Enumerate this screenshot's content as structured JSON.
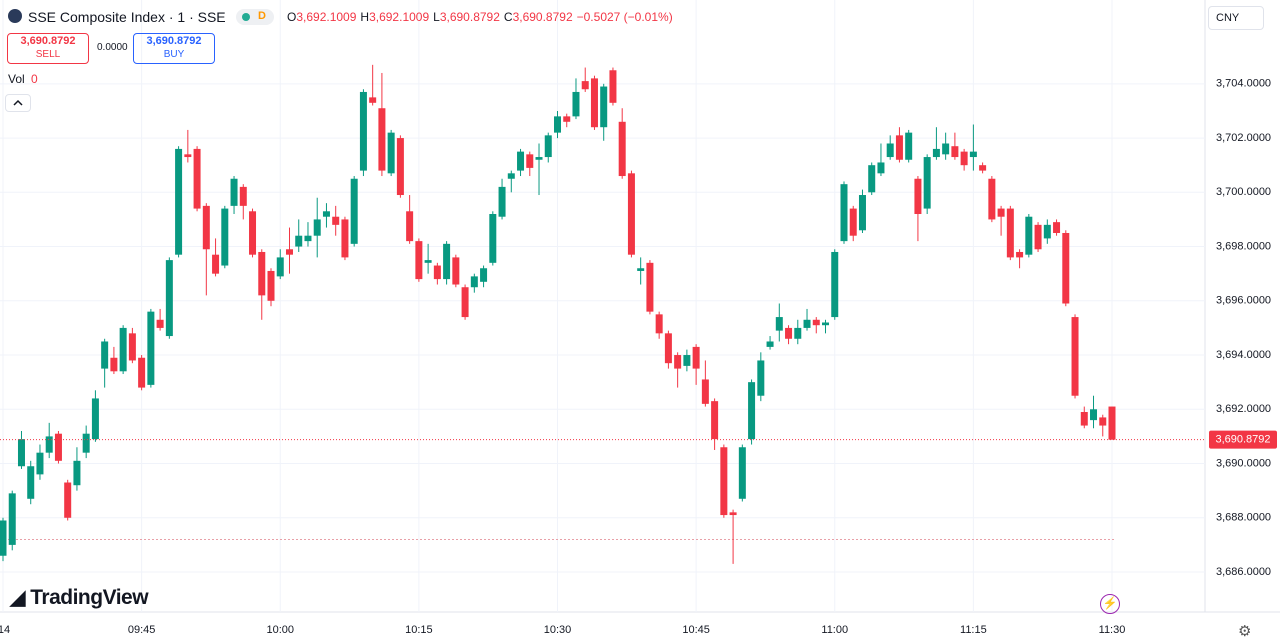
{
  "header": {
    "title": "SSE Composite Index · 1 · SSE",
    "badge": "D",
    "ohlc": [
      {
        "key": "O",
        "value": "3,692.1009"
      },
      {
        "key": "H",
        "value": "3,692.1009"
      },
      {
        "key": "L",
        "value": "3,690.8792"
      },
      {
        "key": "C",
        "value": "3,690.8792"
      }
    ],
    "change": "−0.5027 (−0.01%)",
    "sell": {
      "price": "3,690.8792",
      "label": "SELL"
    },
    "spread": "0.0000",
    "buy": {
      "price": "3,690.8792",
      "label": "BUY"
    },
    "vol": {
      "label": "Vol",
      "value": "0"
    },
    "currency": "CNY",
    "brand": "TradingView"
  },
  "chart_data": {
    "type": "candlestick",
    "up_color": "#089981",
    "down_color": "#f23645",
    "grid": true,
    "categories": [
      "14",
      null,
      null,
      null,
      null,
      null,
      null,
      null,
      null,
      null,
      null,
      null,
      null,
      null,
      null,
      "09:45",
      null,
      null,
      null,
      null,
      null,
      null,
      null,
      null,
      null,
      null,
      null,
      null,
      null,
      null,
      "10:00",
      null,
      null,
      null,
      null,
      null,
      null,
      null,
      null,
      null,
      null,
      null,
      null,
      null,
      null,
      "10:15",
      null,
      null,
      null,
      null,
      null,
      null,
      null,
      null,
      null,
      null,
      null,
      null,
      null,
      null,
      "10:30",
      null,
      null,
      null,
      null,
      null,
      null,
      null,
      null,
      null,
      null,
      null,
      null,
      null,
      null,
      "10:45",
      null,
      null,
      null,
      null,
      null,
      null,
      null,
      null,
      null,
      null,
      null,
      null,
      null,
      null,
      "11:00",
      null,
      null,
      null,
      null,
      null,
      null,
      null,
      null,
      null,
      null,
      null,
      null,
      null,
      null,
      "11:15",
      null,
      null,
      null,
      null,
      null,
      null,
      null,
      null,
      null,
      null,
      null,
      null,
      null,
      null,
      "11:30"
    ],
    "open": [
      3686.6,
      3687.0,
      3689.9,
      3688.7,
      3689.6,
      3690.4,
      3691.1,
      3689.3,
      3689.2,
      3690.4,
      3690.9,
      3693.5,
      3693.9,
      3693.4,
      3694.8,
      3693.9,
      3692.9,
      3695.3,
      3694.7,
      3697.7,
      3701.4,
      3701.6,
      3699.5,
      3697.7,
      3697.3,
      3699.5,
      3700.2,
      3699.3,
      3697.8,
      3697.1,
      3696.9,
      3697.9,
      3698.0,
      3698.2,
      3698.4,
      3699.1,
      3699.1,
      3699.0,
      3698.1,
      3700.8,
      3703.5,
      3703.1,
      3700.7,
      3702.0,
      3699.3,
      3698.2,
      3697.4,
      3697.3,
      3696.8,
      3697.6,
      3696.5,
      3696.5,
      3696.7,
      3697.4,
      3699.1,
      3700.5,
      3700.8,
      3701.4,
      3701.2,
      3701.3,
      3702.2,
      3702.8,
      3702.8,
      3704.1,
      3704.2,
      3702.4,
      3704.5,
      3702.6,
      3700.7,
      3697.1,
      3697.4,
      3695.5,
      3694.8,
      3694.0,
      3693.6,
      3694.3,
      3693.1,
      3692.3,
      3690.6,
      3688.2,
      3688.7,
      3690.9,
      3692.5,
      3694.3,
      3694.9,
      3695.0,
      3694.6,
      3695.0,
      3695.3,
      3695.1,
      3695.4,
      3698.2,
      3699.4,
      3698.6,
      3700.0,
      3700.7,
      3701.3,
      3702.1,
      3701.2,
      3700.5,
      3699.4,
      3701.3,
      3701.4,
      3701.7,
      3701.5,
      3701.3,
      3701.0,
      3700.5,
      3699.4,
      3699.4,
      3697.8,
      3697.7,
      3698.8,
      3698.3,
      3698.9,
      3698.5,
      3695.4,
      3691.9,
      3691.6,
      3691.7,
      3692.1009
    ],
    "high": [
      3688,
      3689.0,
      3691.2,
      3690.1,
      3690.7,
      3691.5,
      3691.2,
      3689.4,
      3690.6,
      3691.4,
      3692.7,
      3694.6,
      3694.3,
      3695.1,
      3695.0,
      3694.0,
      3695.7,
      3695.7,
      3697.6,
      3701.7,
      3702.3,
      3701.7,
      3699.6,
      3698.3,
      3699.5,
      3700.6,
      3700.3,
      3699.4,
      3697.9,
      3697.2,
      3697.9,
      3698.7,
      3699.0,
      3698.9,
      3699.8,
      3699.6,
      3699.5,
      3699.1,
      3700.6,
      3703.8,
      3704.7,
      3704.4,
      3702.3,
      3702.1,
      3699.9,
      3698.3,
      3698.1,
      3697.4,
      3698.2,
      3697.7,
      3696.6,
      3697.0,
      3697.3,
      3699.3,
      3700.5,
      3700.8,
      3701.6,
      3701.5,
      3701.8,
      3702.2,
      3703.0,
      3702.9,
      3704.2,
      3704.6,
      3704.3,
      3704.0,
      3704.6,
      3703.1,
      3700.8,
      3697.6,
      3697.5,
      3695.6,
      3694.9,
      3694.1,
      3694.2,
      3694.4,
      3693.8,
      3692.4,
      3690.7,
      3688.3,
      3690.7,
      3693.1,
      3694.1,
      3694.7,
      3695.9,
      3695.1,
      3695.3,
      3695.7,
      3695.4,
      3695.3,
      3697.9,
      3700.4,
      3699.5,
      3700.1,
      3701.1,
      3701.8,
      3702.1,
      3702.4,
      3702.3,
      3700.6,
      3701.4,
      3702.4,
      3702.2,
      3702.2,
      3701.6,
      3702.5,
      3701.1,
      3700.6,
      3699.5,
      3699.5,
      3697.9,
      3699.2,
      3698.9,
      3699.0,
      3699.0,
      3698.6,
      3695.5,
      3692.1,
      3692.5,
      3691.8,
      3692.1009
    ],
    "low": [
      3686.4,
      3686.8,
      3689.8,
      3688.5,
      3689.4,
      3690.2,
      3690.0,
      3687.9,
      3689.0,
      3690.2,
      3690.8,
      3692.8,
      3693.3,
      3693.3,
      3693.7,
      3692.7,
      3692.8,
      3694.9,
      3694.6,
      3697.6,
      3701.1,
      3699.3,
      3696.2,
      3696.9,
      3697.2,
      3699.2,
      3699.0,
      3697.6,
      3695.3,
      3695.8,
      3696.8,
      3697.0,
      3697.8,
      3698.0,
      3697.6,
      3698.7,
      3698.4,
      3697.5,
      3698.0,
      3700.6,
      3703.2,
      3700.6,
      3700.6,
      3699.8,
      3698.1,
      3696.7,
      3697.0,
      3696.6,
      3696.6,
      3696.5,
      3695.3,
      3696.3,
      3696.5,
      3697.3,
      3699.0,
      3700.0,
      3700.6,
      3700.6,
      3699.9,
      3701.1,
      3702.0,
      3702.4,
      3702.7,
      3703.7,
      3702.3,
      3701.9,
      3703.2,
      3700.5,
      3697.6,
      3696.6,
      3695.5,
      3694.6,
      3693.5,
      3692.8,
      3693.4,
      3692.9,
      3692.1,
      3690.5,
      3688.0,
      3686.3,
      3688.6,
      3690.7,
      3692.3,
      3694.2,
      3694.5,
      3694.4,
      3694.4,
      3694.9,
      3694.8,
      3694.8,
      3695.3,
      3698.1,
      3698.2,
      3698.5,
      3699.9,
      3700.6,
      3701.2,
      3701.1,
      3701.1,
      3698.2,
      3699.2,
      3701.2,
      3701.2,
      3701.2,
      3700.8,
      3700.8,
      3700.7,
      3698.9,
      3698.4,
      3697.5,
      3697.2,
      3697.6,
      3697.8,
      3698.1,
      3698.4,
      3695.8,
      3692.4,
      3691.3,
      3691.3,
      3691.0,
      3690.8792
    ],
    "close": [
      3687.9,
      3688.9,
      3690.9,
      3689.9,
      3690.4,
      3691.0,
      3690.1,
      3688.0,
      3690.1,
      3691.1,
      3692.4,
      3694.5,
      3693.4,
      3695.0,
      3693.8,
      3692.8,
      3695.6,
      3695.0,
      3697.5,
      3701.6,
      3701.3,
      3699.4,
      3697.9,
      3697.0,
      3699.4,
      3700.5,
      3699.5,
      3697.7,
      3696.2,
      3696.0,
      3697.6,
      3697.7,
      3698.4,
      3698.4,
      3699.0,
      3699.3,
      3698.8,
      3697.6,
      3700.5,
      3703.7,
      3703.3,
      3700.8,
      3702.2,
      3699.9,
      3698.2,
      3696.8,
      3697.5,
      3696.8,
      3698.1,
      3696.6,
      3695.4,
      3696.9,
      3697.2,
      3699.2,
      3700.2,
      3700.7,
      3701.5,
      3700.9,
      3701.3,
      3702.1,
      3702.8,
      3702.6,
      3703.7,
      3703.8,
      3702.4,
      3703.9,
      3703.3,
      3700.6,
      3697.7,
      3697.2,
      3695.6,
      3694.8,
      3693.7,
      3693.5,
      3694.0,
      3693.5,
      3692.2,
      3690.9,
      3688.1,
      3688.1,
      3690.6,
      3693.0,
      3693.8,
      3694.5,
      3695.4,
      3694.6,
      3695.0,
      3695.3,
      3695.1,
      3695.2,
      3697.8,
      3700.3,
      3698.4,
      3699.9,
      3701.0,
      3701.1,
      3701.8,
      3701.2,
      3702.2,
      3699.2,
      3701.3,
      3701.6,
      3701.8,
      3701.3,
      3701.0,
      3701.5,
      3700.8,
      3699.0,
      3699.1,
      3697.6,
      3697.6,
      3699.1,
      3697.9,
      3698.8,
      3698.5,
      3695.9,
      3692.5,
      3691.4,
      3692.0,
      3691.4,
      3690.8792
    ],
    "ylim": [
      3685.3,
      3705.8
    ],
    "yticks": [
      {
        "value": 3686,
        "label": "3,686.0000"
      },
      {
        "value": 3688,
        "label": "3,688.0000"
      },
      {
        "value": 3690,
        "label": "3,690.0000"
      },
      {
        "value": 3692,
        "label": "3,692.0000"
      },
      {
        "value": 3694,
        "label": "3,694.0000"
      },
      {
        "value": 3696,
        "label": "3,696.0000"
      },
      {
        "value": 3698,
        "label": "3,698.0000"
      },
      {
        "value": 3700,
        "label": "3,700.0000"
      },
      {
        "value": 3702,
        "label": "3,702.0000"
      },
      {
        "value": 3704,
        "label": "3,704.0000"
      }
    ],
    "last_price": {
      "value": 3690.8792,
      "label": "3,690.8792"
    },
    "reference_line": 3687.2
  }
}
